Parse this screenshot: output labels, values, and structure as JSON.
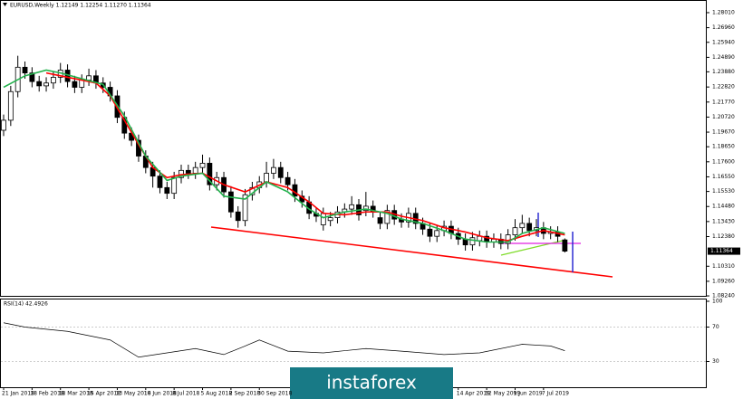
{
  "chart_data": [
    {
      "type": "candlestick",
      "title": "EURUSD,Weekly  1.12149 1.12254 1.11270 1.11364",
      "open": [
        1.198,
        1.205,
        1.225,
        1.242,
        1.238,
        1.232,
        1.229,
        1.231,
        1.235,
        1.24,
        1.232,
        1.228,
        1.233,
        1.236,
        1.231,
        1.228,
        1.222,
        1.207,
        1.196,
        1.191,
        1.18,
        1.172,
        1.166,
        1.158,
        1.154,
        1.165,
        1.17,
        1.168,
        1.172,
        1.175,
        1.16,
        1.165,
        1.155,
        1.141,
        1.135,
        1.153,
        1.158,
        1.162,
        1.168,
        1.172,
        1.165,
        1.16,
        1.152,
        1.148,
        1.14,
        1.132,
        1.135,
        1.137,
        1.141,
        1.143,
        1.146,
        1.142,
        1.145,
        1.137,
        1.133,
        1.142,
        1.136,
        1.134,
        1.14,
        1.133,
        1.129,
        1.124,
        1.128,
        1.131,
        1.126,
        1.122,
        1.118,
        1.121,
        1.124,
        1.12,
        1.122,
        1.119,
        1.125,
        1.13,
        1.133,
        1.128,
        1.13,
        1.126,
        1.127,
        1.12149
      ],
      "high": [
        1.209,
        1.229,
        1.25,
        1.246,
        1.242,
        1.236,
        1.235,
        1.239,
        1.245,
        1.244,
        1.236,
        1.237,
        1.241,
        1.24,
        1.235,
        1.232,
        1.226,
        1.211,
        1.2,
        1.195,
        1.184,
        1.176,
        1.17,
        1.162,
        1.169,
        1.174,
        1.174,
        1.176,
        1.181,
        1.179,
        1.169,
        1.169,
        1.159,
        1.145,
        1.157,
        1.162,
        1.166,
        1.176,
        1.178,
        1.176,
        1.169,
        1.164,
        1.156,
        1.152,
        1.144,
        1.144,
        1.141,
        1.145,
        1.147,
        1.152,
        1.15,
        1.155,
        1.149,
        1.141,
        1.146,
        1.146,
        1.14,
        1.144,
        1.144,
        1.137,
        1.133,
        1.132,
        1.135,
        1.135,
        1.13,
        1.126,
        1.127,
        1.128,
        1.128,
        1.126,
        1.126,
        1.129,
        1.136,
        1.139,
        1.137,
        1.136,
        1.134,
        1.131,
        1.131,
        1.12254
      ],
      "low": [
        1.194,
        1.201,
        1.221,
        1.234,
        1.228,
        1.225,
        1.225,
        1.227,
        1.231,
        1.228,
        1.224,
        1.224,
        1.229,
        1.227,
        1.224,
        1.218,
        1.203,
        1.192,
        1.187,
        1.176,
        1.168,
        1.158,
        1.154,
        1.15,
        1.15,
        1.161,
        1.164,
        1.164,
        1.168,
        1.156,
        1.156,
        1.151,
        1.137,
        1.13,
        1.131,
        1.149,
        1.154,
        1.158,
        1.164,
        1.161,
        1.156,
        1.148,
        1.144,
        1.136,
        1.134,
        1.128,
        1.131,
        1.133,
        1.137,
        1.139,
        1.135,
        1.138,
        1.137,
        1.129,
        1.129,
        1.132,
        1.13,
        1.13,
        1.129,
        1.125,
        1.12,
        1.12,
        1.124,
        1.122,
        1.118,
        1.114,
        1.114,
        1.117,
        1.116,
        1.116,
        1.115,
        1.115,
        1.121,
        1.126,
        1.124,
        1.124,
        1.122,
        1.122,
        1.12,
        1.1127
      ],
      "close": [
        1.205,
        1.225,
        1.242,
        1.238,
        1.232,
        1.229,
        1.231,
        1.235,
        1.24,
        1.232,
        1.228,
        1.233,
        1.236,
        1.231,
        1.228,
        1.222,
        1.207,
        1.196,
        1.191,
        1.18,
        1.172,
        1.166,
        1.158,
        1.154,
        1.165,
        1.17,
        1.168,
        1.172,
        1.175,
        1.16,
        1.165,
        1.155,
        1.141,
        1.135,
        1.153,
        1.158,
        1.162,
        1.168,
        1.172,
        1.165,
        1.16,
        1.152,
        1.148,
        1.14,
        1.138,
        1.14,
        1.137,
        1.141,
        1.143,
        1.146,
        1.139,
        1.145,
        1.141,
        1.133,
        1.142,
        1.136,
        1.134,
        1.14,
        1.133,
        1.129,
        1.124,
        1.128,
        1.131,
        1.126,
        1.122,
        1.118,
        1.123,
        1.124,
        1.12,
        1.122,
        1.119,
        1.125,
        1.13,
        1.133,
        1.128,
        1.13,
        1.126,
        1.127,
        1.124,
        1.11364
      ],
      "overlays": [
        {
          "color": "#ff0000",
          "x": [
            6,
            8,
            11,
            13,
            15,
            17,
            19,
            21,
            23,
            25,
            28,
            31,
            34,
            37,
            40,
            43,
            45,
            48,
            51,
            54,
            56,
            59,
            62,
            65,
            68,
            71,
            73,
            76,
            79
          ],
          "values": [
            1.238,
            1.236,
            1.233,
            1.231,
            1.222,
            1.205,
            1.188,
            1.172,
            1.165,
            1.167,
            1.168,
            1.16,
            1.155,
            1.162,
            1.158,
            1.148,
            1.14,
            1.139,
            1.141,
            1.141,
            1.138,
            1.135,
            1.13,
            1.127,
            1.123,
            1.121,
            1.124,
            1.128,
            1.125
          ]
        },
        {
          "color": "#22b14c",
          "x": [
            0,
            3,
            6,
            8,
            11,
            14,
            17,
            20,
            23,
            25,
            28,
            31,
            34,
            37,
            40,
            43,
            45,
            48,
            51,
            54,
            56,
            59,
            62,
            65,
            68,
            71,
            73,
            76,
            79
          ],
          "values": [
            1.228,
            1.236,
            1.24,
            1.238,
            1.234,
            1.23,
            1.208,
            1.18,
            1.163,
            1.166,
            1.168,
            1.152,
            1.15,
            1.162,
            1.155,
            1.143,
            1.137,
            1.141,
            1.143,
            1.14,
            1.136,
            1.133,
            1.128,
            1.122,
            1.12,
            1.12,
            1.126,
            1.13,
            1.126
          ]
        }
      ],
      "last_price": {
        "value": 1.11364,
        "label": "1.11364"
      },
      "ylim": [
        1.0818,
        1.2864
      ],
      "yticks": [
        {
          "value": 1.2801,
          "label": "1.28010"
        },
        {
          "value": 1.2696,
          "label": "1.26960"
        },
        {
          "value": 1.2594,
          "label": "1.25940"
        },
        {
          "value": 1.2489,
          "label": "1.24890"
        },
        {
          "value": 1.2388,
          "label": "1.23880"
        },
        {
          "value": 1.2282,
          "label": "1.22820"
        },
        {
          "value": 1.2177,
          "label": "1.21770"
        },
        {
          "value": 1.2072,
          "label": "1.20720"
        },
        {
          "value": 1.1967,
          "label": "1.19670"
        },
        {
          "value": 1.1865,
          "label": "1.18650"
        },
        {
          "value": 1.176,
          "label": "1.17600"
        },
        {
          "value": 1.1655,
          "label": "1.16550"
        },
        {
          "value": 1.1553,
          "label": "1.15530"
        },
        {
          "value": 1.1448,
          "label": "1.14480"
        },
        {
          "value": 1.1343,
          "label": "1.13430"
        },
        {
          "value": 1.1238,
          "label": "1.12380"
        },
        {
          "value": 1.1031,
          "label": "1.10310"
        },
        {
          "value": 1.0926,
          "label": "1.09260"
        },
        {
          "value": 1.0824,
          "label": "1.08240"
        }
      ],
      "xticks": [
        {
          "value": 0,
          "label": "21 Jan 2018"
        },
        {
          "value": 4,
          "label": "18 Feb 2018"
        },
        {
          "value": 8,
          "label": "18 Mar 2018"
        },
        {
          "value": 12,
          "label": "15 Apr 2018"
        },
        {
          "value": 16,
          "label": "13 May 2018"
        },
        {
          "value": 20,
          "label": "10 Jun 2018"
        },
        {
          "value": 24,
          "label": "8 Jul 2018"
        },
        {
          "value": 28,
          "label": "5 Aug 2018"
        },
        {
          "value": 32,
          "label": "2 Sep 2018"
        },
        {
          "value": 36,
          "label": "30 Sep 2018"
        },
        {
          "value": 64,
          "label": "14 Apr 2019"
        },
        {
          "value": 68,
          "label": "12 May 2019"
        },
        {
          "value": 72,
          "label": "9 Jun 2019"
        },
        {
          "value": 76,
          "label": "7 Jul 2019"
        }
      ]
    },
    {
      "type": "line",
      "title": "RSI(14) 42.4926",
      "color": "#000000",
      "x": [
        0,
        3,
        9,
        15,
        19,
        23,
        27,
        31,
        34,
        36,
        40,
        45,
        51,
        56,
        62,
        67,
        73,
        77,
        79
      ],
      "values": [
        75,
        70,
        65,
        55,
        35,
        40,
        45,
        38,
        48,
        55,
        42,
        40,
        45,
        42,
        38,
        40,
        50,
        48,
        42.4926
      ],
      "ylim": [
        0,
        100
      ],
      "yticks": [
        100,
        70,
        30
      ]
    }
  ],
  "watermark": "instaforex"
}
